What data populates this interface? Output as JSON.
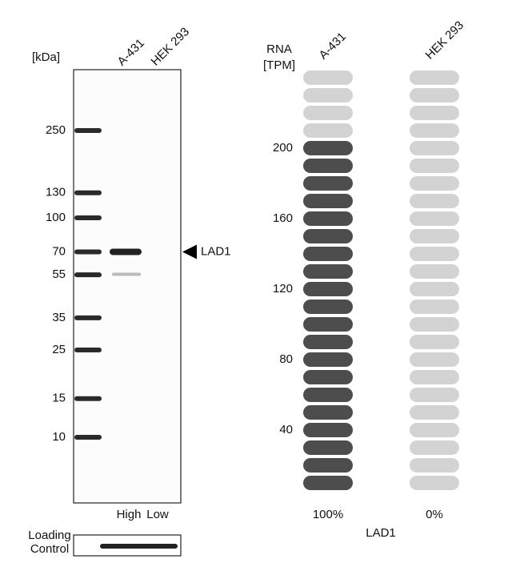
{
  "western_blot": {
    "unit_label": "[kDa]",
    "lanes": [
      "A-431",
      "HEK 293"
    ],
    "markers": [
      250,
      130,
      100,
      70,
      55,
      35,
      25,
      15,
      10
    ],
    "target": "LAD1",
    "target_kda": 70,
    "expression": [
      "High",
      "Low"
    ],
    "loading_control": [
      "Loading",
      "Control"
    ]
  },
  "rna": {
    "axis_label": [
      "RNA",
      "[TPM]"
    ],
    "lanes": [
      "A-431",
      "HEK 293"
    ],
    "values": [
      200,
      0
    ],
    "ylim": [
      0,
      240
    ],
    "yticks": [
      40,
      80,
      120,
      160,
      200
    ],
    "value_labels": [
      "100%",
      "0%"
    ],
    "gene": "LAD1",
    "colors": [
      "#4d4d4d",
      "#d3d3d3"
    ]
  }
}
